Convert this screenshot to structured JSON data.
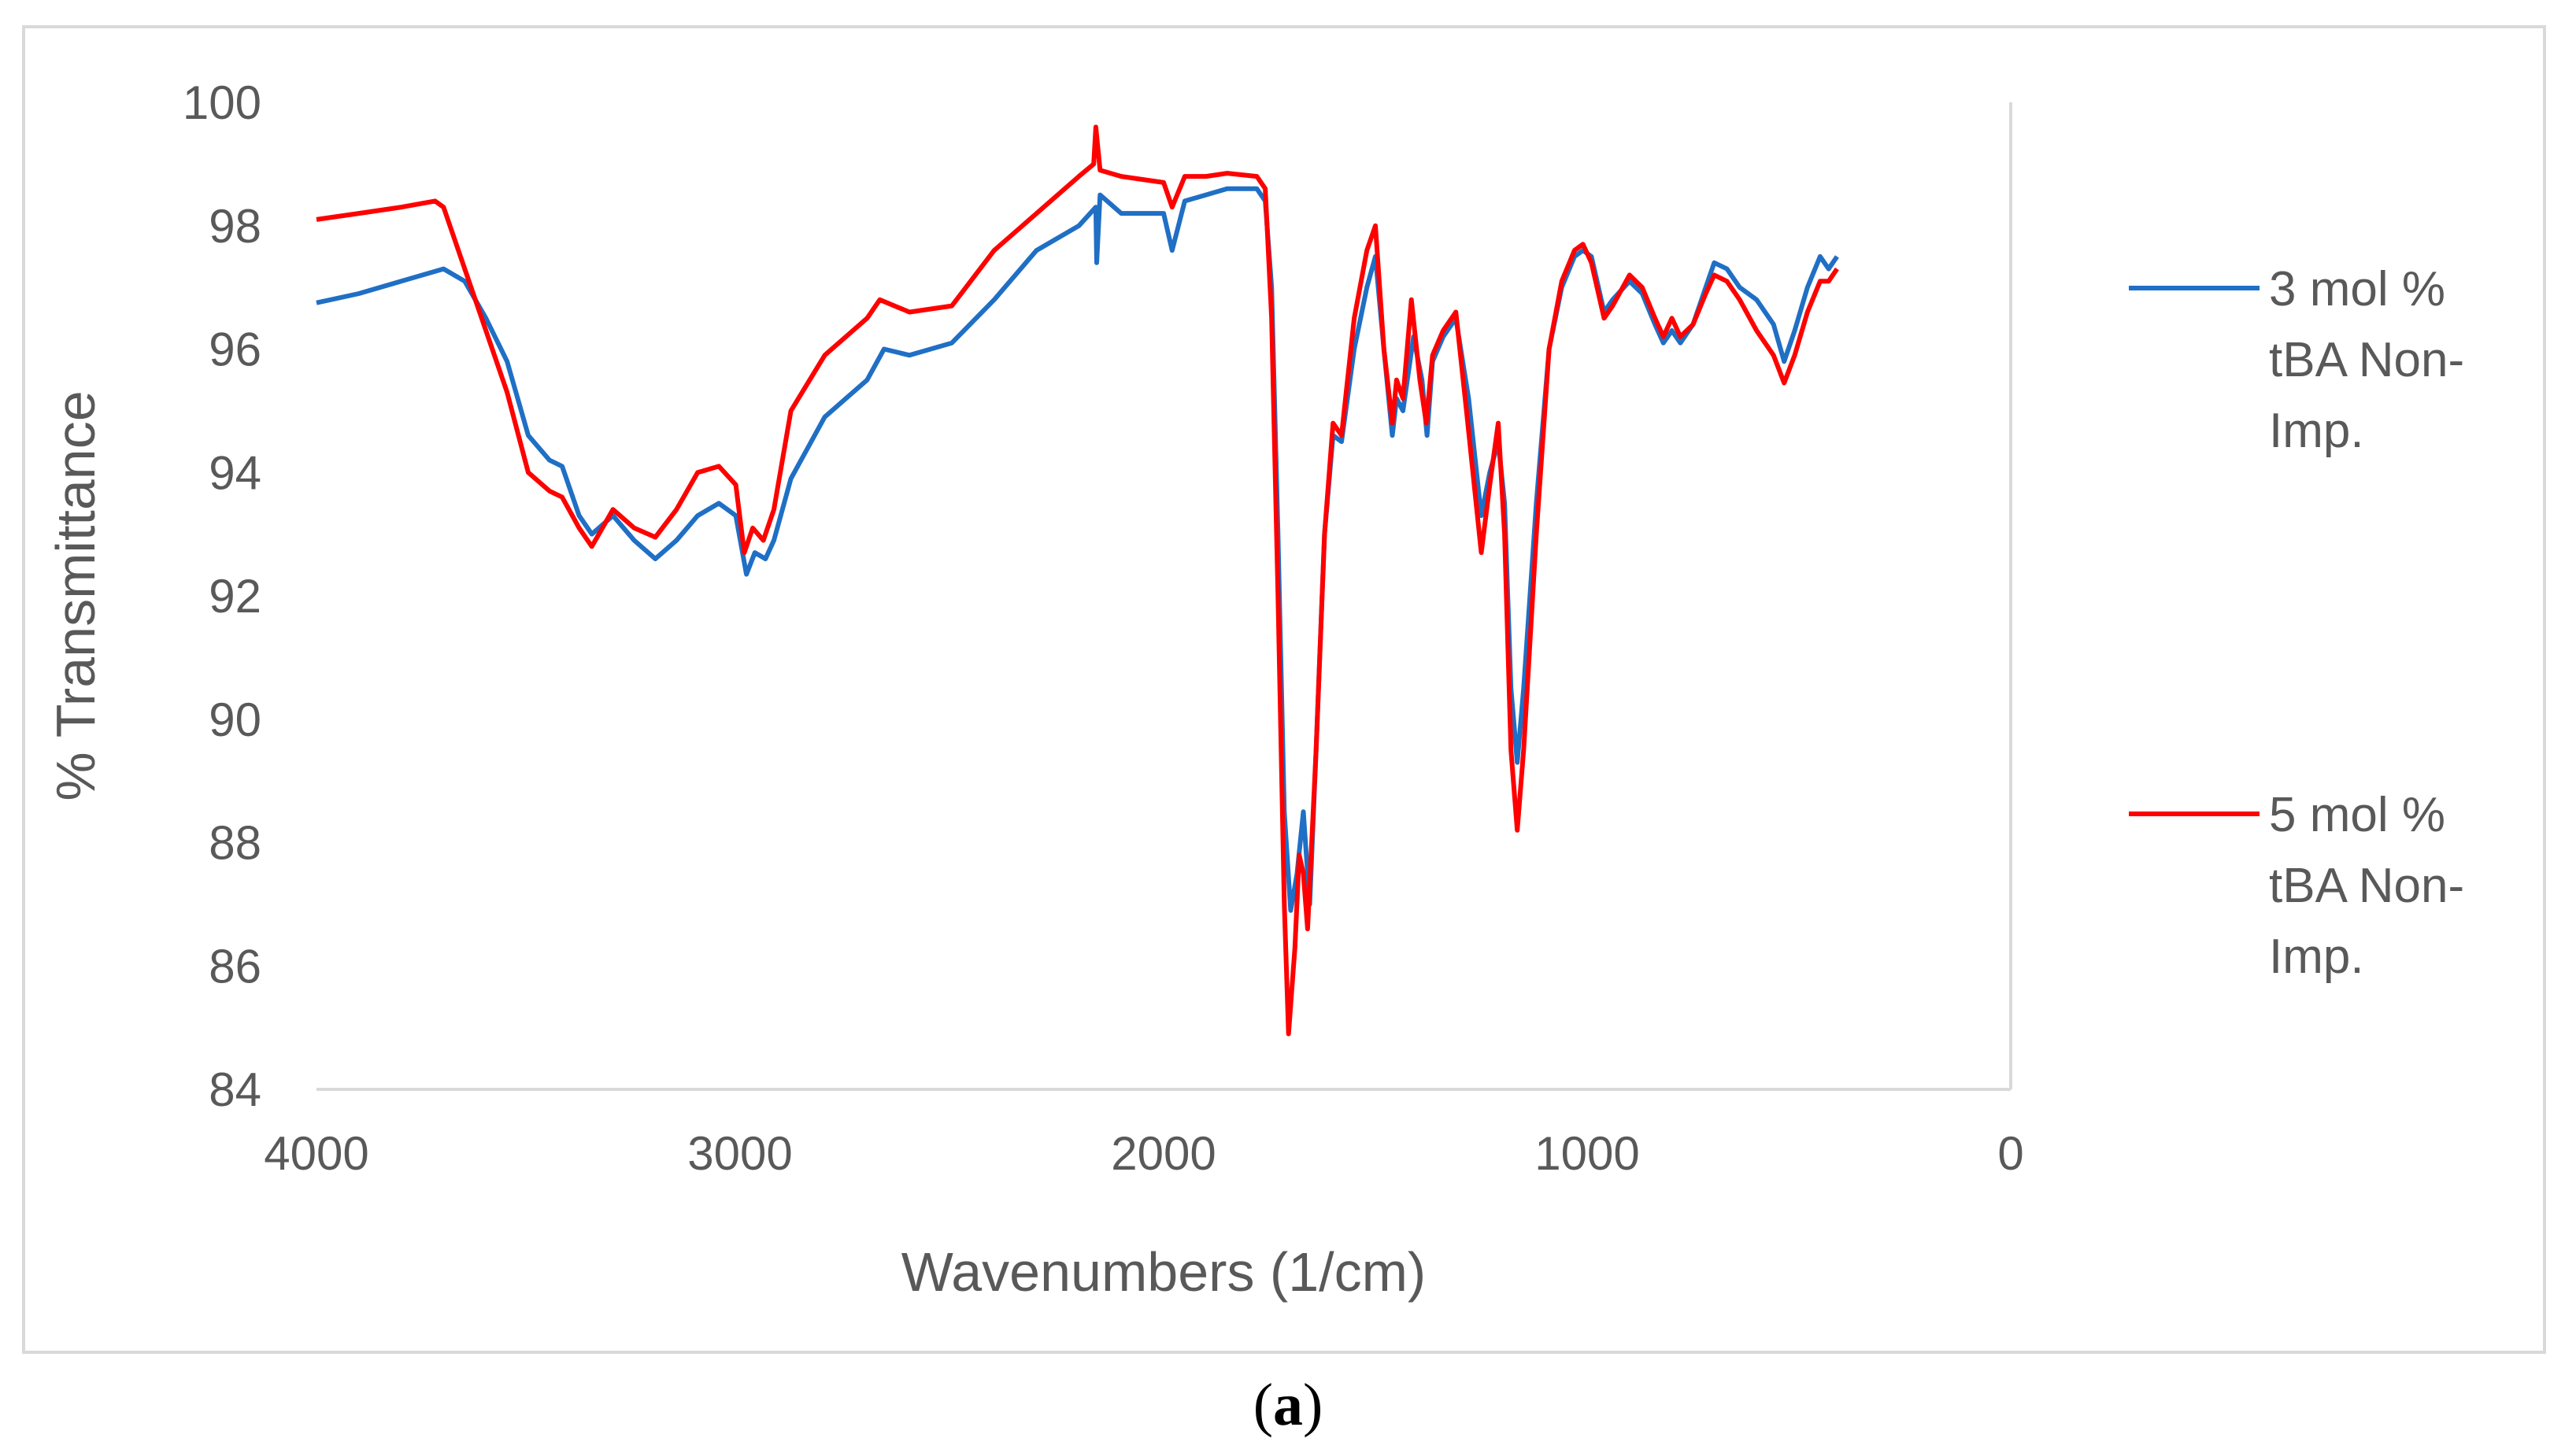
{
  "caption": {
    "open": "(",
    "letter": "a",
    "close": ")"
  },
  "colors": {
    "series_blue": "#1f6fc5",
    "series_red": "#ff0000",
    "axis": "#d9d9d9",
    "text": "#595959"
  },
  "chart_data": {
    "type": "line",
    "title": "",
    "xlabel": "Wavenumbers (1/cm)",
    "ylabel": "% Transmittance",
    "xlim": [
      4000,
      0
    ],
    "ylim": [
      84,
      100
    ],
    "x_ticks": [
      4000,
      3000,
      2000,
      1000,
      0
    ],
    "y_ticks": [
      84,
      86,
      88,
      90,
      92,
      94,
      96,
      98,
      100
    ],
    "grid": false,
    "legend_position": "right",
    "series": [
      {
        "name": "3 mol % tBA Non-Imp.",
        "legend_lines": [
          "3 mol %",
          "tBA Non-",
          "Imp."
        ],
        "color": "#1f6fc5",
        "points": [
          [
            4000,
            96.75
          ],
          [
            3900,
            96.9
          ],
          [
            3800,
            97.1
          ],
          [
            3700,
            97.3
          ],
          [
            3650,
            97.1
          ],
          [
            3600,
            96.5
          ],
          [
            3550,
            95.8
          ],
          [
            3500,
            94.6
          ],
          [
            3450,
            94.2
          ],
          [
            3420,
            94.1
          ],
          [
            3380,
            93.3
          ],
          [
            3350,
            93.0
          ],
          [
            3300,
            93.3
          ],
          [
            3250,
            92.9
          ],
          [
            3200,
            92.6
          ],
          [
            3150,
            92.9
          ],
          [
            3100,
            93.3
          ],
          [
            3050,
            93.5
          ],
          [
            3010,
            93.3
          ],
          [
            2985,
            92.35
          ],
          [
            2965,
            92.7
          ],
          [
            2940,
            92.6
          ],
          [
            2920,
            92.9
          ],
          [
            2880,
            93.9
          ],
          [
            2800,
            94.9
          ],
          [
            2700,
            95.5
          ],
          [
            2660,
            96.0
          ],
          [
            2600,
            95.9
          ],
          [
            2500,
            96.1
          ],
          [
            2400,
            96.8
          ],
          [
            2300,
            97.6
          ],
          [
            2200,
            98.0
          ],
          [
            2160,
            98.3
          ],
          [
            2158,
            97.4
          ],
          [
            2150,
            98.5
          ],
          [
            2100,
            98.2
          ],
          [
            2000,
            98.2
          ],
          [
            1980,
            97.6
          ],
          [
            1950,
            98.4
          ],
          [
            1900,
            98.5
          ],
          [
            1850,
            98.6
          ],
          [
            1780,
            98.6
          ],
          [
            1760,
            98.4
          ],
          [
            1745,
            97.0
          ],
          [
            1730,
            93.0
          ],
          [
            1715,
            88.5
          ],
          [
            1700,
            86.9
          ],
          [
            1685,
            87.5
          ],
          [
            1670,
            88.5
          ],
          [
            1655,
            87.0
          ],
          [
            1640,
            89.5
          ],
          [
            1620,
            93.0
          ],
          [
            1600,
            94.6
          ],
          [
            1580,
            94.5
          ],
          [
            1550,
            96.0
          ],
          [
            1520,
            97.0
          ],
          [
            1500,
            97.5
          ],
          [
            1480,
            96.0
          ],
          [
            1460,
            94.6
          ],
          [
            1450,
            95.2
          ],
          [
            1435,
            95.0
          ],
          [
            1410,
            96.2
          ],
          [
            1390,
            95.5
          ],
          [
            1378,
            94.6
          ],
          [
            1365,
            95.8
          ],
          [
            1340,
            96.2
          ],
          [
            1310,
            96.5
          ],
          [
            1280,
            95.2
          ],
          [
            1250,
            93.3
          ],
          [
            1230,
            94.0
          ],
          [
            1210,
            94.5
          ],
          [
            1195,
            93.5
          ],
          [
            1180,
            90.5
          ],
          [
            1165,
            89.3
          ],
          [
            1150,
            90.5
          ],
          [
            1120,
            93.5
          ],
          [
            1090,
            96.0
          ],
          [
            1060,
            97.0
          ],
          [
            1030,
            97.5
          ],
          [
            1010,
            97.6
          ],
          [
            990,
            97.5
          ],
          [
            960,
            96.6
          ],
          [
            940,
            96.8
          ],
          [
            900,
            97.1
          ],
          [
            870,
            96.9
          ],
          [
            840,
            96.4
          ],
          [
            820,
            96.1
          ],
          [
            800,
            96.3
          ],
          [
            780,
            96.1
          ],
          [
            750,
            96.4
          ],
          [
            720,
            97.0
          ],
          [
            700,
            97.4
          ],
          [
            670,
            97.3
          ],
          [
            640,
            97.0
          ],
          [
            600,
            96.8
          ],
          [
            560,
            96.4
          ],
          [
            535,
            95.8
          ],
          [
            510,
            96.3
          ],
          [
            480,
            97.0
          ],
          [
            450,
            97.5
          ],
          [
            430,
            97.3
          ],
          [
            410,
            97.5
          ]
        ]
      },
      {
        "name": "5 mol % tBA Non-Imp.",
        "legend_lines": [
          "5 mol %",
          "tBA Non-",
          "Imp."
        ],
        "color": "#ff0000",
        "points": [
          [
            4000,
            98.1
          ],
          [
            3900,
            98.2
          ],
          [
            3800,
            98.3
          ],
          [
            3720,
            98.4
          ],
          [
            3700,
            98.3
          ],
          [
            3650,
            97.3
          ],
          [
            3600,
            96.3
          ],
          [
            3550,
            95.3
          ],
          [
            3500,
            94.0
          ],
          [
            3450,
            93.7
          ],
          [
            3420,
            93.6
          ],
          [
            3380,
            93.1
          ],
          [
            3350,
            92.8
          ],
          [
            3300,
            93.4
          ],
          [
            3250,
            93.1
          ],
          [
            3200,
            92.95
          ],
          [
            3150,
            93.4
          ],
          [
            3100,
            94.0
          ],
          [
            3050,
            94.1
          ],
          [
            3010,
            93.8
          ],
          [
            2990,
            92.7
          ],
          [
            2970,
            93.1
          ],
          [
            2945,
            92.9
          ],
          [
            2920,
            93.4
          ],
          [
            2880,
            95.0
          ],
          [
            2800,
            95.9
          ],
          [
            2700,
            96.5
          ],
          [
            2670,
            96.8
          ],
          [
            2600,
            96.6
          ],
          [
            2500,
            96.7
          ],
          [
            2400,
            97.6
          ],
          [
            2300,
            98.2
          ],
          [
            2200,
            98.8
          ],
          [
            2165,
            99.0
          ],
          [
            2160,
            99.6
          ],
          [
            2150,
            98.9
          ],
          [
            2100,
            98.8
          ],
          [
            2000,
            98.7
          ],
          [
            1980,
            98.3
          ],
          [
            1950,
            98.8
          ],
          [
            1900,
            98.8
          ],
          [
            1850,
            98.85
          ],
          [
            1780,
            98.8
          ],
          [
            1760,
            98.6
          ],
          [
            1745,
            96.5
          ],
          [
            1730,
            92.0
          ],
          [
            1715,
            87.0
          ],
          [
            1705,
            84.9
          ],
          [
            1690,
            86.3
          ],
          [
            1680,
            87.8
          ],
          [
            1670,
            87.5
          ],
          [
            1660,
            86.6
          ],
          [
            1640,
            89.5
          ],
          [
            1620,
            93.0
          ],
          [
            1600,
            94.8
          ],
          [
            1580,
            94.6
          ],
          [
            1550,
            96.5
          ],
          [
            1520,
            97.6
          ],
          [
            1500,
            98.0
          ],
          [
            1480,
            96.0
          ],
          [
            1460,
            94.8
          ],
          [
            1450,
            95.5
          ],
          [
            1435,
            95.2
          ],
          [
            1415,
            96.8
          ],
          [
            1395,
            95.5
          ],
          [
            1380,
            94.8
          ],
          [
            1365,
            95.9
          ],
          [
            1340,
            96.3
          ],
          [
            1310,
            96.6
          ],
          [
            1285,
            95.0
          ],
          [
            1250,
            92.7
          ],
          [
            1230,
            93.8
          ],
          [
            1210,
            94.8
          ],
          [
            1195,
            93.0
          ],
          [
            1180,
            89.5
          ],
          [
            1165,
            88.2
          ],
          [
            1150,
            89.5
          ],
          [
            1120,
            93.0
          ],
          [
            1090,
            96.0
          ],
          [
            1060,
            97.1
          ],
          [
            1030,
            97.6
          ],
          [
            1010,
            97.7
          ],
          [
            990,
            97.4
          ],
          [
            960,
            96.5
          ],
          [
            940,
            96.7
          ],
          [
            900,
            97.2
          ],
          [
            870,
            97.0
          ],
          [
            840,
            96.5
          ],
          [
            820,
            96.2
          ],
          [
            800,
            96.5
          ],
          [
            780,
            96.2
          ],
          [
            750,
            96.4
          ],
          [
            720,
            96.9
          ],
          [
            700,
            97.2
          ],
          [
            670,
            97.1
          ],
          [
            640,
            96.8
          ],
          [
            600,
            96.3
          ],
          [
            560,
            95.9
          ],
          [
            535,
            95.45
          ],
          [
            510,
            95.9
          ],
          [
            480,
            96.6
          ],
          [
            450,
            97.1
          ],
          [
            430,
            97.1
          ],
          [
            410,
            97.3
          ]
        ]
      }
    ]
  }
}
